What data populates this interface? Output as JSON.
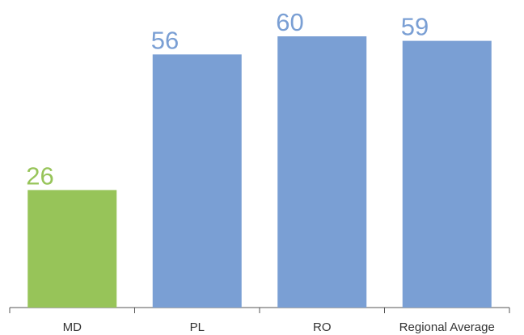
{
  "chart_data": {
    "type": "bar",
    "categories": [
      "MD",
      "PL",
      "RO",
      "Regional Average"
    ],
    "values": [
      26,
      56,
      60,
      59
    ],
    "colors": [
      "#97c459",
      "#7a9fd4",
      "#7a9fd4",
      "#7a9fd4"
    ]
  }
}
